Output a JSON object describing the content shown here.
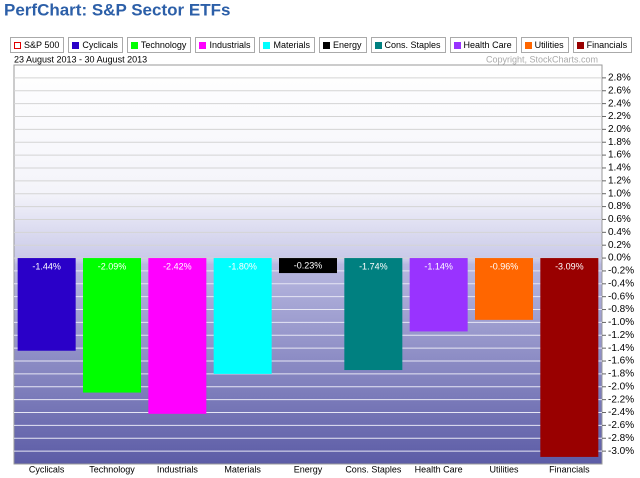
{
  "chart_data": {
    "type": "bar",
    "title": "PerfChart: S&P Sector ETFs",
    "subtitle": "23 August 2013 - 30 August 2013",
    "copyright": "Copyright, StockCharts.com",
    "legend": [
      {
        "name": "S&P 500",
        "color": "#e00000",
        "hollow": true
      },
      {
        "name": "Cyclicals",
        "color": "#2a00c8"
      },
      {
        "name": "Technology",
        "color": "#00ff00"
      },
      {
        "name": "Industrials",
        "color": "#ff00ff"
      },
      {
        "name": "Materials",
        "color": "#00ffff"
      },
      {
        "name": "Energy",
        "color": "#000000"
      },
      {
        "name": "Cons. Staples",
        "color": "#008080"
      },
      {
        "name": "Health Care",
        "color": "#9933ff"
      },
      {
        "name": "Utilities",
        "color": "#ff6600"
      },
      {
        "name": "Financials",
        "color": "#990000"
      }
    ],
    "categories": [
      "Cyclicals",
      "Technology",
      "Industrials",
      "Materials",
      "Energy",
      "Cons. Staples",
      "Health Care",
      "Utilities",
      "Financials"
    ],
    "values": [
      -1.44,
      -2.09,
      -2.42,
      -1.8,
      -0.23,
      -1.74,
      -1.14,
      -0.96,
      -3.09
    ],
    "value_labels": [
      "-1.44%",
      "-2.09%",
      "-2.42%",
      "-1.80%",
      "-0.23%",
      "-1.74%",
      "-1.14%",
      "-0.96%",
      "-3.09%"
    ],
    "colors": [
      "#2a00c8",
      "#00ff00",
      "#ff00ff",
      "#00ffff",
      "#000000",
      "#008080",
      "#9933ff",
      "#ff6600",
      "#990000"
    ],
    "ylim": [
      -3.2,
      3.0
    ],
    "yticks": [
      {
        "value": 2.8,
        "label": "2.8%"
      },
      {
        "value": 2.6,
        "label": "2.6%"
      },
      {
        "value": 2.4,
        "label": "2.4%"
      },
      {
        "value": 2.2,
        "label": "2.2%"
      },
      {
        "value": 2.0,
        "label": "2.0%"
      },
      {
        "value": 1.8,
        "label": "1.8%"
      },
      {
        "value": 1.6,
        "label": "1.6%"
      },
      {
        "value": 1.4,
        "label": "1.4%"
      },
      {
        "value": 1.2,
        "label": "1.2%"
      },
      {
        "value": 1.0,
        "label": "1.0%"
      },
      {
        "value": 0.8,
        "label": "0.8%"
      },
      {
        "value": 0.6,
        "label": "0.6%"
      },
      {
        "value": 0.4,
        "label": "0.4%"
      },
      {
        "value": 0.2,
        "label": "0.2%"
      },
      {
        "value": 0,
        "label": "0.0%"
      },
      {
        "value": -0.2,
        "label": "-0.2%"
      },
      {
        "value": -0.4,
        "label": "-0.4%"
      },
      {
        "value": -0.6,
        "label": "-0.6%"
      },
      {
        "value": -0.8,
        "label": "-0.8%"
      },
      {
        "value": -1.0,
        "label": "-1.0%"
      },
      {
        "value": -1.2,
        "label": "-1.2%"
      },
      {
        "value": -1.4,
        "label": "-1.4%"
      },
      {
        "value": -1.6,
        "label": "-1.6%"
      },
      {
        "value": -1.8,
        "label": "-1.8%"
      },
      {
        "value": -2.0,
        "label": "-2.0%"
      },
      {
        "value": -2.2,
        "label": "-2.2%"
      },
      {
        "value": -2.4,
        "label": "-2.4%"
      },
      {
        "value": -2.6,
        "label": "-2.6%"
      },
      {
        "value": -2.8,
        "label": "-2.8%"
      },
      {
        "value": -3.0,
        "label": "-3.0%"
      }
    ],
    "grid": true
  }
}
